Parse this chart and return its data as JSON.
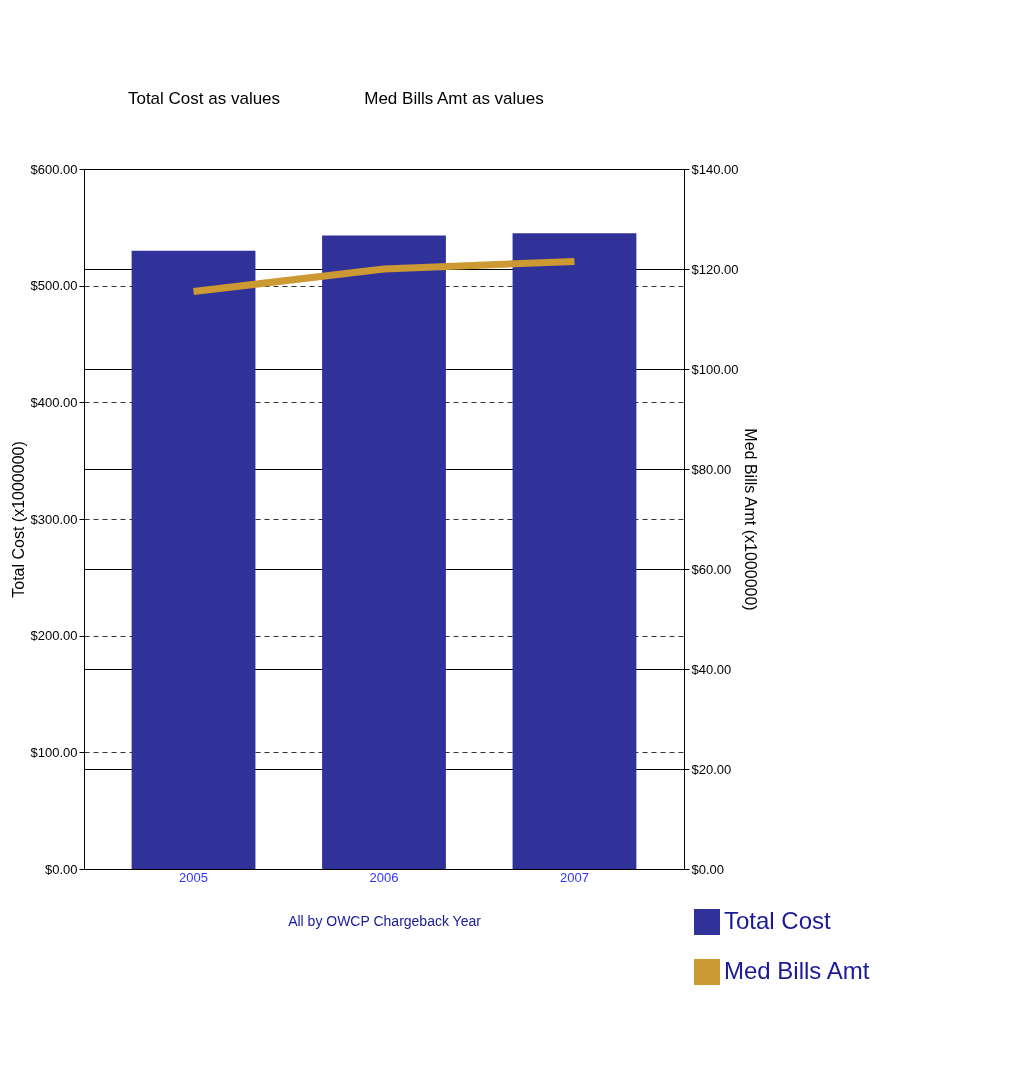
{
  "chart_data": {
    "type": "bar",
    "xlabel": "All by OWCP Chargeback Year",
    "ylabel": "Total Cost (x1000000)",
    "y2label": "Med Bills Amt (x1000000)",
    "categories": [
      "2005",
      "2006",
      "2007"
    ],
    "series": [
      {
        "name": "Total Cost",
        "color": "#31319a",
        "values": [
          530,
          543,
          545
        ]
      },
      {
        "name": "Med Bills Amt",
        "type": "line",
        "axis": "y2",
        "color": "#cc9933",
        "values": [
          115.5,
          120,
          121.5
        ]
      }
    ],
    "ylim": [
      0,
      600
    ],
    "yticks": [
      {
        "value": 0,
        "label": "$0.00"
      },
      {
        "value": 100,
        "label": "$100.00"
      },
      {
        "value": 200,
        "label": "$200.00"
      },
      {
        "value": 300,
        "label": "$300.00"
      },
      {
        "value": 400,
        "label": "$400.00"
      },
      {
        "value": 500,
        "label": "$500.00"
      },
      {
        "value": 600,
        "label": "$600.00"
      }
    ],
    "y2lim": [
      0,
      140
    ],
    "y2ticks": [
      {
        "value": 0,
        "label": "$0.00"
      },
      {
        "value": 20,
        "label": "$20.00"
      },
      {
        "value": 40,
        "label": "$40.00"
      },
      {
        "value": 60,
        "label": "$60.00"
      },
      {
        "value": 80,
        "label": "$80.00"
      },
      {
        "value": 100,
        "label": "$100.00"
      },
      {
        "value": 120,
        "label": "$120.00"
      },
      {
        "value": 140,
        "label": "$140.00"
      }
    ],
    "annotations": [
      "Total Cost as values",
      "Med Bills Amt as values"
    ],
    "grid": true,
    "legend": "bottom right",
    "marker": "none",
    "line_style": "solid"
  }
}
